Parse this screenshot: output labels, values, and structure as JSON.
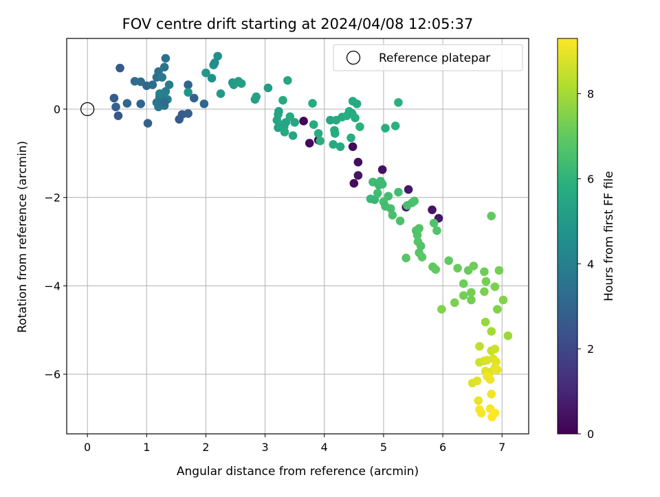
{
  "chart_data": {
    "type": "scatter",
    "title": "FOV centre drift starting at 2024/04/08 12:05:37",
    "xlabel": "Angular distance from reference (arcmin)",
    "ylabel": "Rotation from reference (arcmin)",
    "xlim": [
      -0.35,
      7.45
    ],
    "ylim": [
      -7.35,
      1.6
    ],
    "x_ticks": [
      0,
      1,
      2,
      3,
      4,
      5,
      6,
      7
    ],
    "x_tick_labels": [
      "0",
      "1",
      "2",
      "3",
      "4",
      "5",
      "6",
      "7"
    ],
    "y_ticks": [
      -6,
      -4,
      -2,
      0
    ],
    "y_tick_labels": [
      "−6",
      "−4",
      "−2",
      "0"
    ],
    "grid": true,
    "legend": {
      "placement": "top-right",
      "entries": [
        "Reference platepar"
      ]
    },
    "reference_point": {
      "x": 0,
      "y": 0,
      "marker": "open-circle"
    },
    "colorbar": {
      "label": "Hours from first FF file",
      "colormap": "viridis",
      "range": [
        0,
        9.3
      ],
      "ticks": [
        0,
        2,
        4,
        6,
        8
      ],
      "tick_labels": [
        "0",
        "2",
        "4",
        "6",
        "8"
      ]
    },
    "points": [
      [
        3.65,
        -0.27,
        0.05
      ],
      [
        3.75,
        -0.77,
        0.15
      ],
      [
        3.9,
        -0.7,
        0.1
      ],
      [
        4.48,
        -0.85,
        0.2
      ],
      [
        4.57,
        -1.2,
        0.3
      ],
      [
        4.98,
        -1.37,
        0.4
      ],
      [
        4.57,
        -1.5,
        0.5
      ],
      [
        4.5,
        -1.68,
        0.3
      ],
      [
        5.42,
        -1.82,
        0.6
      ],
      [
        5.38,
        -2.22,
        0.7
      ],
      [
        5.82,
        -2.28,
        0.5
      ],
      [
        5.93,
        -2.47,
        0.6
      ],
      [
        0.55,
        0.93,
        2.6
      ],
      [
        0.45,
        0.25,
        2.7
      ],
      [
        0.48,
        0.05,
        2.8
      ],
      [
        0.52,
        -0.15,
        2.5
      ],
      [
        0.67,
        0.13,
        3.0
      ],
      [
        0.9,
        0.12,
        3.0
      ],
      [
        1.02,
        -0.32,
        2.9
      ],
      [
        1.55,
        -0.23,
        2.6
      ],
      [
        1.6,
        -0.12,
        2.7
      ],
      [
        1.7,
        -0.1,
        2.8
      ],
      [
        1.8,
        0.25,
        2.9
      ],
      [
        1.97,
        0.12,
        3.0
      ],
      [
        1.0,
        0.53,
        3.1
      ],
      [
        0.9,
        0.62,
        3.2
      ],
      [
        0.8,
        0.63,
        3.3
      ],
      [
        1.1,
        0.55,
        3.3
      ],
      [
        1.17,
        0.72,
        3.4
      ],
      [
        1.2,
        0.85,
        3.5
      ],
      [
        1.3,
        0.95,
        3.5
      ],
      [
        1.32,
        1.15,
        3.4
      ],
      [
        1.26,
        0.72,
        3.7
      ],
      [
        1.22,
        0.28,
        3.6
      ],
      [
        1.17,
        0.15,
        3.6
      ],
      [
        1.2,
        0.05,
        3.7
      ],
      [
        1.3,
        0.08,
        3.6
      ],
      [
        1.28,
        0.3,
        3.8
      ],
      [
        1.35,
        0.22,
        3.9
      ],
      [
        1.38,
        0.55,
        3.9
      ],
      [
        1.32,
        0.4,
        4.0
      ],
      [
        1.7,
        0.55,
        3.0
      ],
      [
        1.22,
        0.35,
        4.0
      ],
      [
        1.3,
        0.15,
        3.2
      ],
      [
        1.7,
        0.38,
        4.8
      ],
      [
        2.0,
        0.82,
        4.9
      ],
      [
        2.1,
        0.7,
        4.7
      ],
      [
        2.13,
        1.0,
        4.7
      ],
      [
        2.15,
        1.05,
        4.5
      ],
      [
        2.2,
        1.2,
        4.6
      ],
      [
        2.25,
        0.35,
        5.0
      ],
      [
        2.45,
        0.6,
        5.0
      ],
      [
        2.47,
        0.55,
        5.1
      ],
      [
        2.55,
        0.63,
        5.1
      ],
      [
        2.6,
        0.58,
        5.2
      ],
      [
        2.83,
        0.22,
        5.3
      ],
      [
        2.85,
        0.28,
        5.3
      ],
      [
        3.05,
        0.48,
        5.1
      ],
      [
        3.23,
        -0.05,
        5.3
      ],
      [
        3.22,
        -0.12,
        5.4
      ],
      [
        3.2,
        -0.25,
        5.4
      ],
      [
        3.25,
        -0.35,
        5.5
      ],
      [
        3.22,
        -0.42,
        5.3
      ],
      [
        3.3,
        0.2,
        5.6
      ],
      [
        3.32,
        -0.4,
        5.5
      ],
      [
        3.35,
        -0.3,
        5.4
      ],
      [
        3.33,
        -0.52,
        5.6
      ],
      [
        3.38,
        0.65,
        5.5
      ],
      [
        3.42,
        -0.17,
        5.6
      ],
      [
        3.47,
        -0.6,
        5.5
      ],
      [
        3.5,
        -0.3,
        5.5
      ],
      [
        3.8,
        0.13,
        5.6
      ],
      [
        3.82,
        -0.35,
        5.7
      ],
      [
        3.9,
        -0.55,
        5.7
      ],
      [
        3.93,
        -0.72,
        5.8
      ],
      [
        4.1,
        -0.25,
        5.5
      ],
      [
        4.15,
        -0.8,
        5.6
      ],
      [
        4.17,
        -0.48,
        5.8
      ],
      [
        4.18,
        -0.55,
        5.7
      ],
      [
        4.2,
        -0.25,
        5.6
      ],
      [
        4.27,
        -0.85,
        5.6
      ],
      [
        4.3,
        -0.18,
        5.7
      ],
      [
        4.38,
        -0.15,
        5.8
      ],
      [
        4.42,
        -0.05,
        5.8
      ],
      [
        4.47,
        -0.1,
        5.7
      ],
      [
        4.45,
        -0.65,
        5.8
      ],
      [
        4.48,
        0.18,
        5.7
      ],
      [
        4.55,
        0.12,
        5.6
      ],
      [
        4.52,
        -0.2,
        5.8
      ],
      [
        4.6,
        -0.4,
        5.9
      ],
      [
        5.03,
        -0.43,
        5.8
      ],
      [
        5.2,
        -0.38,
        5.9
      ],
      [
        5.25,
        0.15,
        5.9
      ],
      [
        4.78,
        -2.03,
        6.2
      ],
      [
        4.82,
        -1.65,
        6.3
      ],
      [
        4.85,
        -2.05,
        6.2
      ],
      [
        4.9,
        -1.9,
        6.4
      ],
      [
        4.92,
        -1.72,
        6.2
      ],
      [
        4.95,
        -1.63,
        6.3
      ],
      [
        4.98,
        -1.7,
        6.3
      ],
      [
        5.0,
        -2.1,
        6.5
      ],
      [
        5.03,
        -2.2,
        6.4
      ],
      [
        5.08,
        -1.97,
        6.4
      ],
      [
        5.12,
        -2.25,
        6.5
      ],
      [
        5.15,
        -2.4,
        6.5
      ],
      [
        5.25,
        -1.88,
        6.4
      ],
      [
        5.28,
        -2.53,
        6.6
      ],
      [
        5.38,
        -3.37,
        6.8
      ],
      [
        5.4,
        -2.18,
        6.5
      ],
      [
        5.48,
        -2.12,
        6.5
      ],
      [
        5.52,
        -2.08,
        6.6
      ],
      [
        5.55,
        -2.75,
        6.6
      ],
      [
        5.57,
        -2.85,
        6.7
      ],
      [
        5.6,
        -2.7,
        6.7
      ],
      [
        5.58,
        -3.0,
        6.8
      ],
      [
        5.6,
        -3.25,
        6.8
      ],
      [
        5.63,
        -3.1,
        6.7
      ],
      [
        5.65,
        -3.35,
        6.9
      ],
      [
        5.83,
        -3.57,
        6.9
      ],
      [
        5.85,
        -2.58,
        6.7
      ],
      [
        5.88,
        -3.63,
        7.0
      ],
      [
        5.9,
        -2.75,
        6.7
      ],
      [
        6.1,
        -3.43,
        7.0
      ],
      [
        6.25,
        -3.6,
        7.1
      ],
      [
        6.43,
        -3.65,
        7.1
      ],
      [
        6.52,
        -3.55,
        7.2
      ],
      [
        6.35,
        -3.95,
        7.2
      ],
      [
        6.35,
        -4.22,
        7.3
      ],
      [
        6.48,
        -4.15,
        7.3
      ],
      [
        6.48,
        -4.32,
        7.3
      ],
      [
        6.2,
        -4.38,
        7.4
      ],
      [
        5.98,
        -4.53,
        7.5
      ],
      [
        6.7,
        -3.68,
        7.2
      ],
      [
        6.73,
        -3.9,
        7.3
      ],
      [
        6.7,
        -4.13,
        7.4
      ],
      [
        6.82,
        -2.42,
        7.0
      ],
      [
        6.88,
        -4.02,
        7.4
      ],
      [
        6.95,
        -3.65,
        7.3
      ],
      [
        6.92,
        -4.53,
        7.5
      ],
      [
        7.02,
        -4.32,
        7.5
      ],
      [
        7.1,
        -5.13,
        7.9
      ],
      [
        6.72,
        -4.82,
        7.8
      ],
      [
        6.82,
        -5.03,
        8.0
      ],
      [
        6.62,
        -5.37,
        8.4
      ],
      [
        6.82,
        -5.47,
        8.5
      ],
      [
        6.88,
        -5.43,
        8.6
      ],
      [
        6.62,
        -5.73,
        8.6
      ],
      [
        6.7,
        -5.7,
        8.7
      ],
      [
        6.75,
        -5.68,
        8.8
      ],
      [
        6.85,
        -5.65,
        8.8
      ],
      [
        6.9,
        -5.72,
        8.9
      ],
      [
        6.72,
        -5.93,
        8.9
      ],
      [
        6.8,
        -5.95,
        8.9
      ],
      [
        6.88,
        -5.85,
        9.0
      ],
      [
        6.92,
        -5.9,
        9.0
      ],
      [
        6.75,
        -6.05,
        9.1
      ],
      [
        6.8,
        -6.12,
        9.1
      ],
      [
        6.5,
        -6.2,
        8.8
      ],
      [
        6.58,
        -6.15,
        8.9
      ],
      [
        6.82,
        -6.45,
        9.1
      ],
      [
        6.6,
        -6.6,
        9.0
      ],
      [
        6.62,
        -6.8,
        9.2
      ],
      [
        6.65,
        -6.88,
        9.2
      ],
      [
        6.8,
        -6.78,
        9.2
      ],
      [
        6.88,
        -6.88,
        9.3
      ],
      [
        6.83,
        -6.97,
        9.3
      ]
    ]
  }
}
